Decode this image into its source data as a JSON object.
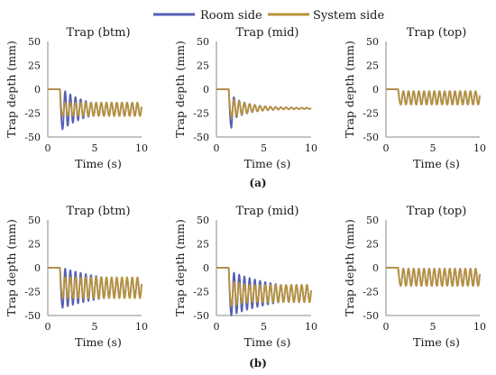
{
  "legend": [
    {
      "name": "Room side",
      "color": "#5560b4"
    },
    {
      "name": "System side",
      "color": "#b8913a"
    }
  ],
  "chart_data": [
    {
      "type": "line",
      "row": "a",
      "col": 0,
      "title": "Trap (btm)",
      "xlabel": "Time (s)",
      "ylabel": "Trap depth (mm)",
      "xlim": [
        0,
        10
      ],
      "ylim": [
        -50,
        50
      ],
      "xticks": [
        0,
        5,
        10
      ],
      "yticks": [
        50,
        25,
        0,
        -25,
        -50
      ],
      "series": [
        {
          "name": "Room side",
          "step_time": 1.3,
          "settle": -21,
          "amplitude": 7,
          "overshoot": -42,
          "period": 0.55,
          "decay": 0.12
        },
        {
          "name": "System side",
          "step_time": 1.3,
          "settle": -21,
          "amplitude": 7,
          "overshoot": -28,
          "period": 0.55,
          "decay": 0.12
        }
      ]
    },
    {
      "type": "line",
      "row": "a",
      "col": 1,
      "title": "Trap (mid)",
      "xlabel": "Time (s)",
      "ylabel": "Trap depth (mm)",
      "xlim": [
        0,
        10
      ],
      "ylim": [
        -50,
        50
      ],
      "xticks": [
        0,
        5,
        10
      ],
      "yticks": [
        50,
        25,
        0,
        -25,
        -50
      ],
      "series": [
        {
          "name": "Room side",
          "step_time": 1.3,
          "settle": -20,
          "amplitude": 12,
          "overshoot": -40,
          "period": 0.55,
          "decay": 0.55
        },
        {
          "name": "System side",
          "step_time": 1.3,
          "settle": -20,
          "amplitude": 10,
          "overshoot": -28,
          "period": 0.55,
          "decay": 0.5
        }
      ]
    },
    {
      "type": "line",
      "row": "a",
      "col": 2,
      "title": "Trap (top)",
      "xlabel": "Time (s)",
      "ylabel": "Trap depth (mm)",
      "xlim": [
        0,
        10
      ],
      "ylim": [
        -50,
        50
      ],
      "xticks": [
        0,
        5,
        10
      ],
      "yticks": [
        50,
        25,
        0,
        -25,
        -50
      ],
      "series": [
        {
          "name": "Room side",
          "step_time": 1.3,
          "settle": -9,
          "amplitude": 4,
          "overshoot": -16,
          "period": 0.55,
          "decay": 0.0
        },
        {
          "name": "System side",
          "step_time": 1.3,
          "settle": -9,
          "amplitude": 4,
          "overshoot": -16,
          "period": 0.55,
          "decay": 0.0
        }
      ]
    },
    {
      "type": "line",
      "row": "b",
      "col": 0,
      "title": "Trap (btm)",
      "xlabel": "Time (s)",
      "ylabel": "Trap depth (mm)",
      "xlim": [
        0,
        10
      ],
      "ylim": [
        -50,
        50
      ],
      "xticks": [
        0,
        5,
        10
      ],
      "yticks": [
        50,
        25,
        0,
        -25,
        -50
      ],
      "series": [
        {
          "name": "Room side",
          "step_time": 1.3,
          "settle": -21,
          "amplitude": 10,
          "overshoot": -42,
          "period": 0.55,
          "decay": 0.05
        },
        {
          "name": "System side",
          "step_time": 1.3,
          "settle": -21,
          "amplitude": 11,
          "overshoot": -30,
          "period": 0.55,
          "decay": 0.05
        }
      ]
    },
    {
      "type": "line",
      "row": "b",
      "col": 1,
      "title": "Trap (mid)",
      "xlabel": "Time (s)",
      "ylabel": "Trap depth (mm)",
      "xlim": [
        0,
        10
      ],
      "ylim": [
        -50,
        50
      ],
      "xticks": [
        0,
        5,
        10
      ],
      "yticks": [
        50,
        25,
        0,
        -25,
        -50
      ],
      "series": [
        {
          "name": "Room side",
          "step_time": 1.3,
          "settle": -27,
          "amplitude": 9,
          "overshoot": -50,
          "period": 0.55,
          "decay": 0.06
        },
        {
          "name": "System side",
          "step_time": 1.3,
          "settle": -27,
          "amplitude": 9,
          "overshoot": -40,
          "period": 0.55,
          "decay": 0.06
        }
      ]
    },
    {
      "type": "line",
      "row": "b",
      "col": 2,
      "title": "Trap (top)",
      "xlabel": "Time (s)",
      "ylabel": "Trap depth (mm)",
      "xlim": [
        0,
        10
      ],
      "ylim": [
        -50,
        50
      ],
      "xticks": [
        0,
        5,
        10
      ],
      "yticks": [
        50,
        25,
        0,
        -25,
        -50
      ],
      "series": [
        {
          "name": "Room side",
          "step_time": 1.3,
          "settle": -10,
          "amplitude": 9,
          "overshoot": -19,
          "period": 0.55,
          "decay": 0.0
        },
        {
          "name": "System side",
          "step_time": 1.3,
          "settle": -10,
          "amplitude": 9,
          "overshoot": -19,
          "period": 0.55,
          "decay": 0.0
        }
      ]
    }
  ],
  "panel_labels": {
    "a": "(a)",
    "b": "(b)"
  }
}
